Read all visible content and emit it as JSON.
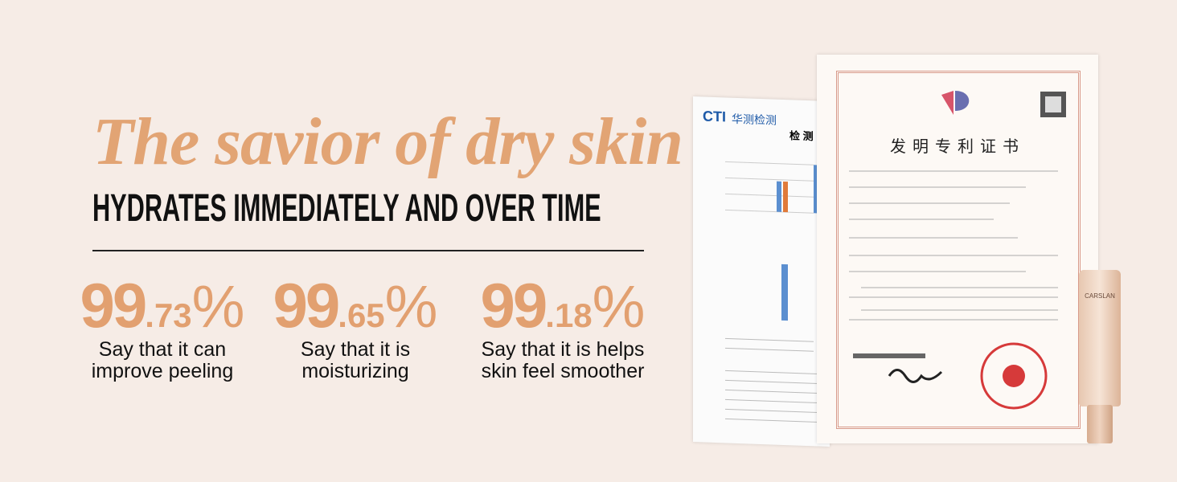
{
  "header": {
    "title": "The savior of dry skin",
    "subtitle": "HYDRATES IMMEDIATELY AND OVER TIME"
  },
  "stats": [
    {
      "whole": "99",
      "decimal": ".73",
      "unit": "%",
      "caption": [
        "Say that it can",
        "improve peeling"
      ]
    },
    {
      "whole": "99",
      "decimal": ".65",
      "unit": "%",
      "caption": [
        "Say that it is",
        "moisturizing"
      ]
    },
    {
      "whole": "99",
      "decimal": ".18",
      "unit": "%",
      "caption": [
        "Say that it is helps",
        "skin feel smoother"
      ]
    }
  ],
  "report": {
    "logo": "CTI",
    "company": "华测检测",
    "heading": "检 测"
  },
  "certificate": {
    "title": "发明专利证书"
  },
  "product": {
    "brand": "CARSLAN"
  }
}
